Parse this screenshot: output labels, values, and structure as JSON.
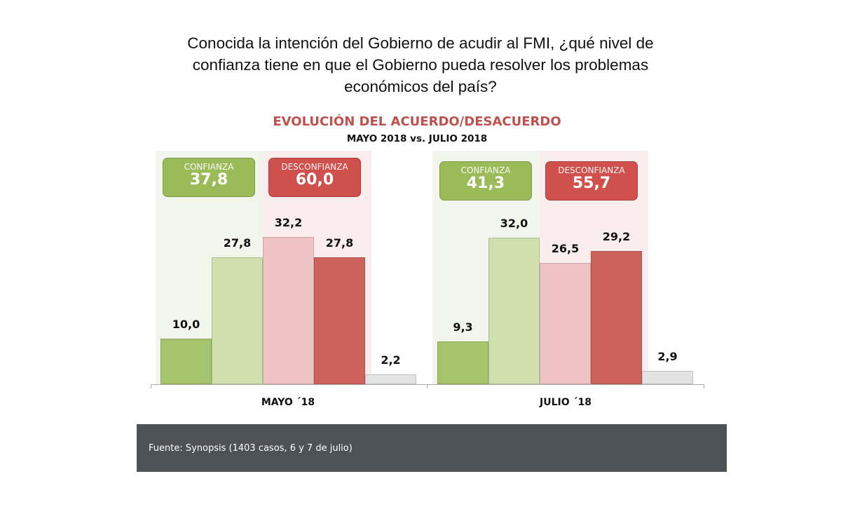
{
  "question": [
    "Conocida la intención del Gobierno de acudir al FMI, ¿qué nivel de",
    "confianza tiene en que el Gobierno pueda resolver los problemas",
    "económicos del país?"
  ],
  "chart_data": {
    "type": "bar",
    "title": "EVOLUCIÓN DEL ACUERDO/DESACUERDO",
    "subtitle": "MAYO 2018 vs. JULIO 2018",
    "categories": [
      "MAYO ´18",
      "JULIO ´18"
    ],
    "groups": [
      {
        "category": "MAYO ´18",
        "values": [
          10.0,
          27.8,
          32.2,
          27.8,
          2.2
        ],
        "labels": [
          "10,0",
          "27,8",
          "32,2",
          "27,8",
          "2,2"
        ],
        "summary": {
          "confianza_label": "CONFIANZA",
          "confianza": "37,8",
          "desconfianza_label": "DESCONFIANZA",
          "desconfianza": "60,0"
        }
      },
      {
        "category": "JULIO ´18",
        "values": [
          9.3,
          32.0,
          26.5,
          29.2,
          2.9
        ],
        "labels": [
          "9,3",
          "32,0",
          "26,5",
          "29,2",
          "2,9"
        ],
        "summary": {
          "confianza_label": "CONFIANZA",
          "confianza": "41,3",
          "desconfianza_label": "DESCONFIANZA",
          "desconfianza": "55,7"
        }
      }
    ],
    "bar_colors": [
      "#a5c46b",
      "#cfdfae",
      "#efc3c3",
      "#cd625c",
      "#e3e3e3"
    ],
    "ylim": [
      0,
      35
    ],
    "grid": false
  },
  "colors": {
    "confianza": "#9bbb59",
    "desconfianza": "#d0504d",
    "confianza_panel": "#f2f5ec",
    "desconfianza_panel": "#f9eded",
    "footer": "#4d5257"
  },
  "footer": "Fuente: Synopsis (1403 casos, 6 y 7 de julio)"
}
